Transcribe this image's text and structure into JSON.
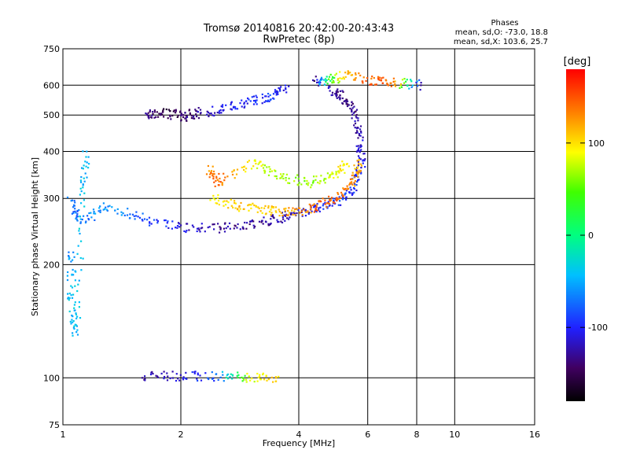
{
  "chart_data": {
    "type": "scatter",
    "title": "Tromsø 20140816 20:42:00-20:43:43",
    "subtitle": "RwPretec (8p)",
    "xlabel": "Frequency [MHz]",
    "ylabel": "Stationary phase Virtual Height [km]",
    "x_scale": "log",
    "y_scale": "log",
    "xlim": [
      1,
      16
    ],
    "ylim": [
      75,
      750
    ],
    "x_ticks": [
      1,
      2,
      4,
      6,
      8,
      10,
      16
    ],
    "y_ticks": [
      75,
      100,
      200,
      300,
      400,
      500,
      600,
      750
    ],
    "x_gridlines": [
      2,
      4,
      6,
      8,
      10
    ],
    "y_gridlines": [
      100,
      200,
      300,
      400,
      500,
      600
    ],
    "grid": true,
    "stats": {
      "heading": "Phases",
      "o_mode": "mean, sd,O: -73.0, 18.8",
      "x_mode": "mean, sd,X: 103.6, 25.7"
    },
    "colorbar": {
      "label": "[deg]",
      "min": -180,
      "max": 180,
      "ticks": [
        100,
        0,
        -100
      ],
      "colormap": "rainbow"
    },
    "series": [
      {
        "points": [
          [
            1.62,
            500,
            -130
          ],
          [
            1.8,
            510,
            -150
          ],
          [
            2.0,
            495,
            -145
          ],
          [
            2.2,
            505,
            -130
          ],
          [
            2.6,
            520,
            -110
          ],
          [
            3.0,
            540,
            -100
          ],
          [
            3.4,
            560,
            -90
          ],
          [
            3.7,
            590,
            -110
          ]
        ]
      },
      {
        "points": [
          [
            1.05,
            295,
            -80
          ],
          [
            1.1,
            260,
            -70
          ],
          [
            1.3,
            285,
            -60
          ],
          [
            1.6,
            265,
            -80
          ],
          [
            2.0,
            250,
            -110
          ],
          [
            2.5,
            250,
            -130
          ],
          [
            3.0,
            255,
            -130
          ],
          [
            3.5,
            265,
            -125
          ],
          [
            4.0,
            275,
            -120
          ],
          [
            4.6,
            285,
            -100
          ],
          [
            5.2,
            300,
            -90
          ],
          [
            5.6,
            330,
            -100
          ],
          [
            5.8,
            380,
            -110
          ],
          [
            5.7,
            440,
            -120
          ],
          [
            5.5,
            520,
            -135
          ],
          [
            5.2,
            560,
            -140
          ],
          [
            4.8,
            580,
            -120
          ]
        ]
      },
      {
        "points": [
          [
            2.4,
            300,
            90
          ],
          [
            2.8,
            285,
            110
          ],
          [
            3.3,
            280,
            100
          ],
          [
            3.8,
            275,
            120
          ],
          [
            4.4,
            285,
            140
          ],
          [
            5.0,
            300,
            150
          ],
          [
            5.5,
            330,
            130
          ],
          [
            5.7,
            380,
            110
          ]
        ]
      },
      {
        "points": [
          [
            2.35,
            360,
            130
          ],
          [
            2.5,
            330,
            140
          ],
          [
            3.1,
            375,
            90
          ],
          [
            3.5,
            345,
            70
          ],
          [
            4.2,
            330,
            60
          ],
          [
            4.9,
            345,
            80
          ],
          [
            5.3,
            370,
            100
          ]
        ]
      },
      {
        "points": [
          [
            1.05,
            220,
            -60
          ],
          [
            1.05,
            160,
            -40
          ],
          [
            1.08,
            130,
            -45
          ],
          [
            1.12,
            300,
            -40
          ],
          [
            1.15,
            400,
            -50
          ]
        ]
      },
      {
        "points": [
          [
            1.6,
            101,
            -130
          ],
          [
            2.0,
            101,
            -110
          ],
          [
            2.5,
            101,
            -80
          ],
          [
            3.0,
            100,
            80
          ],
          [
            3.5,
            100,
            110
          ]
        ]
      },
      {
        "points": [
          [
            4.4,
            615,
            -150
          ],
          [
            4.8,
            620,
            30
          ],
          [
            5.3,
            640,
            120
          ],
          [
            6.3,
            615,
            150
          ],
          [
            7.0,
            610,
            140
          ],
          [
            8.2,
            600,
            -130
          ]
        ]
      }
    ]
  }
}
